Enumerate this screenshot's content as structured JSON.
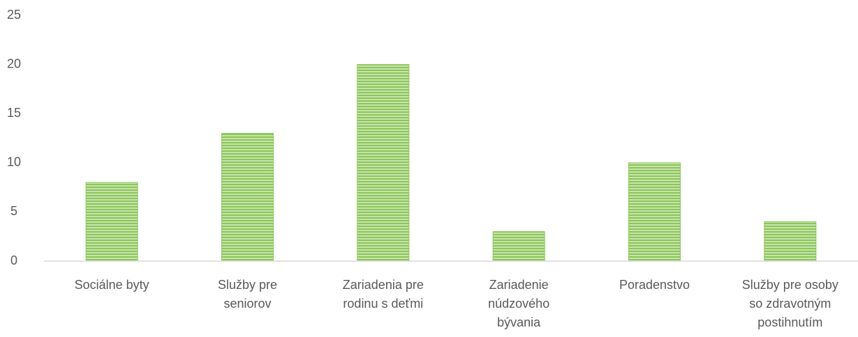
{
  "chart_data": {
    "type": "bar",
    "categories": [
      "Sociálne byty",
      "Služby pre seniorov",
      "Zariadenia pre rodinu s deťmi",
      "Zariadenie núdzového bývania",
      "Poradenstvo",
      "Služby pre osoby so zdravotným postihnutím"
    ],
    "values": [
      8,
      13,
      20,
      3,
      10,
      4
    ],
    "color": "#8cc65a",
    "ylim": [
      0,
      25
    ],
    "yticks": [
      0,
      5,
      10,
      15,
      20,
      25
    ],
    "grid": false
  }
}
